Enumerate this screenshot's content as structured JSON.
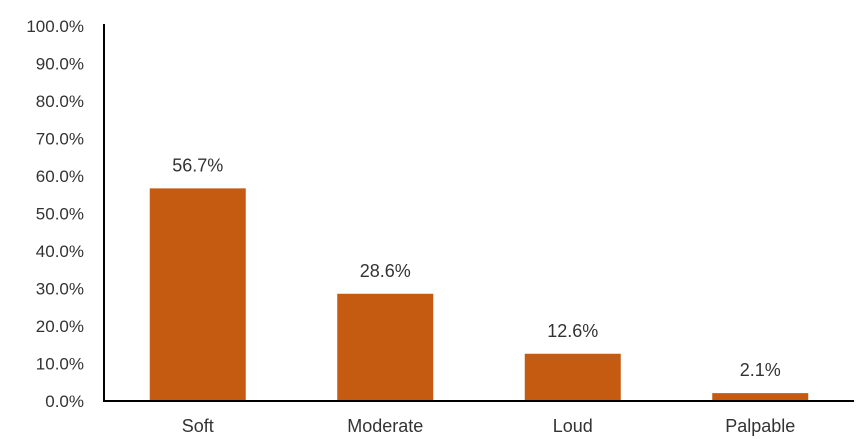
{
  "chart_data": {
    "type": "bar",
    "categories": [
      "Soft",
      "Moderate",
      "Loud",
      "Palpable"
    ],
    "values": [
      56.7,
      28.6,
      12.6,
      2.1
    ],
    "data_labels": [
      "56.7%",
      "28.6%",
      "12.6%",
      "2.1%"
    ],
    "ylim": [
      0,
      100
    ],
    "y_ticks": [
      0,
      10,
      20,
      30,
      40,
      50,
      60,
      70,
      80,
      90,
      100
    ],
    "y_tick_labels": [
      "0.0%",
      "10.0%",
      "20.0%",
      "30.0%",
      "40.0%",
      "50.0%",
      "60.0%",
      "70.0%",
      "80.0%",
      "90.0%",
      "100.0%"
    ],
    "bar_color": "#C55A11",
    "axis_color": "#000000",
    "grid": false,
    "legend": "none"
  }
}
